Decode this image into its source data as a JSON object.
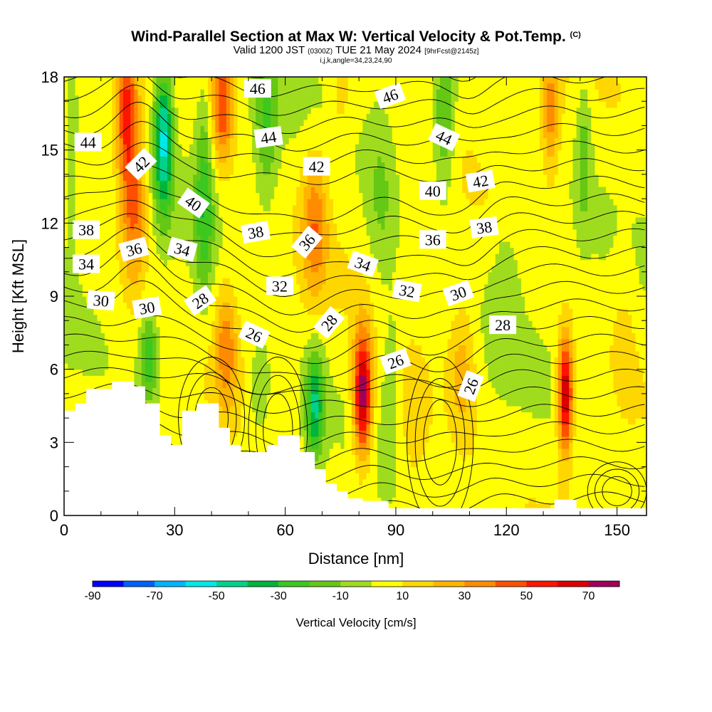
{
  "header": {
    "title": "Wind-Parallel Section at Max W: Vertical Velocity & Pot.Temp.",
    "copyright": "(C)",
    "valid_prefix": "Valid 1200 JST",
    "valid_utc": "(0300Z)",
    "valid_date": "TUE 21 May 2024",
    "forecast": "[9hrFcst@2145z]",
    "indices": "i,j,k,angle=34,23,24,90"
  },
  "colors": {
    "-90": "#0000ff",
    "-80": "#0060ff",
    "-70": "#00b4ff",
    "-60": "#00e8e8",
    "-50": "#00d28c",
    "-40": "#00b43c",
    "-30": "#3cc81e",
    "-20": "#64c814",
    "-10": "#a0dc1e",
    "0": "#ffff00",
    "10": "#ffd700",
    "20": "#ffb400",
    "30": "#ff8c00",
    "40": "#ff5000",
    "50": "#ff1400",
    "60": "#dc0000",
    "70": "#a0005a",
    "80": "#64008c"
  },
  "chart_data": {
    "type": "heatmap",
    "xlabel": "Distance [nm]",
    "ylabel": "Height [Kft MSL]",
    "xlim": [
      0,
      158
    ],
    "ylim": [
      0,
      18
    ],
    "x_ticks": [
      0,
      30,
      60,
      90,
      120,
      150
    ],
    "y_ticks": [
      0,
      3,
      6,
      9,
      12,
      15,
      18
    ],
    "colorbar": {
      "title": "Vertical Velocity [cm/s]",
      "levels": [
        -90,
        -80,
        -70,
        -60,
        -50,
        -40,
        -30,
        -20,
        -10,
        0,
        10,
        20,
        30,
        40,
        50,
        60,
        70,
        80
      ],
      "tick_labels": [
        "-90",
        "-70",
        "-50",
        "-30",
        "-10",
        "10",
        "30",
        "50",
        "70"
      ]
    },
    "vertical_velocity_features": [
      {
        "x": 81,
        "z": 5.0,
        "w": 75,
        "wx": 2.5,
        "wz": 2.6
      },
      {
        "x": 136,
        "z": 5.0,
        "w": 70,
        "wx": 2.0,
        "wz": 2.4
      },
      {
        "x": 17,
        "z": 16.5,
        "w": 50,
        "wx": 3.0,
        "wz": 3.0
      },
      {
        "x": 19,
        "z": 12.5,
        "w": 38,
        "wx": 3.5,
        "wz": 3.0
      },
      {
        "x": 43,
        "z": 17.0,
        "w": 45,
        "wx": 3.0,
        "wz": 2.5
      },
      {
        "x": 68,
        "z": 12.0,
        "w": 32,
        "wx": 3.5,
        "wz": 3.0
      },
      {
        "x": 44,
        "z": 7.0,
        "w": 30,
        "wx": 3.0,
        "wz": 2.5
      },
      {
        "x": 108,
        "z": 6.0,
        "w": 22,
        "wx": 4.0,
        "wz": 3.0
      },
      {
        "x": 132,
        "z": 16.5,
        "w": 30,
        "wx": 2.5,
        "wz": 2.5
      },
      {
        "x": 95,
        "z": 3.5,
        "w": 15,
        "wx": 5.0,
        "wz": 3.0
      },
      {
        "x": 27,
        "z": 15.5,
        "w": -55,
        "wx": 2.5,
        "wz": 3.0
      },
      {
        "x": 68,
        "z": 4.5,
        "w": -45,
        "wx": 2.5,
        "wz": 2.2
      },
      {
        "x": 38,
        "z": 13.0,
        "w": -30,
        "wx": 2.5,
        "wz": 4.0
      },
      {
        "x": 23,
        "z": 6.5,
        "w": -32,
        "wx": 2.5,
        "wz": 2.0
      },
      {
        "x": 55,
        "z": 16.0,
        "w": -25,
        "wx": 3.0,
        "wz": 3.0
      },
      {
        "x": 103,
        "z": 16.0,
        "w": -25,
        "wx": 3.0,
        "wz": 3.0
      },
      {
        "x": 86,
        "z": 13.0,
        "w": -15,
        "wx": 4.0,
        "wz": 4.0
      },
      {
        "x": 141,
        "z": 15.0,
        "w": -20,
        "wx": 2.0,
        "wz": 3.0
      },
      {
        "x": 53,
        "z": 5.0,
        "w": -15,
        "wx": 3.0,
        "wz": 2.0
      },
      {
        "x": 89,
        "z": 6.0,
        "w": -12,
        "wx": 2.5,
        "wz": 3.0
      },
      {
        "x": 120,
        "z": 10.0,
        "w": -10,
        "wx": 4.0,
        "wz": 3.0
      },
      {
        "x": 2,
        "z": 14.0,
        "w": -10,
        "wx": 2.0,
        "wz": 4.0
      },
      {
        "x": 75,
        "z": 17.0,
        "w": 12,
        "wx": 3.0,
        "wz": 2.0
      },
      {
        "x": 152,
        "z": 8.0,
        "w": 8,
        "wx": 4.0,
        "wz": 4.0
      }
    ],
    "terrain": [
      [
        0,
        4.3
      ],
      [
        3,
        4.3
      ],
      [
        3,
        4.6
      ],
      [
        6,
        4.6
      ],
      [
        6,
        5.2
      ],
      [
        13,
        5.2
      ],
      [
        13,
        5.5
      ],
      [
        19,
        5.5
      ],
      [
        19,
        5.3
      ],
      [
        22,
        5.3
      ],
      [
        22,
        4.6
      ],
      [
        26,
        4.6
      ],
      [
        26,
        3.3
      ],
      [
        29,
        3.3
      ],
      [
        29,
        2.9
      ],
      [
        32,
        2.9
      ],
      [
        32,
        4.3
      ],
      [
        36,
        4.3
      ],
      [
        36,
        4.6
      ],
      [
        42,
        4.6
      ],
      [
        42,
        3.6
      ],
      [
        45,
        3.6
      ],
      [
        45,
        2.9
      ],
      [
        48,
        2.9
      ],
      [
        48,
        2.6
      ],
      [
        55,
        2.6
      ],
      [
        55,
        2.9
      ],
      [
        58,
        2.9
      ],
      [
        58,
        3.3
      ],
      [
        64,
        3.3
      ],
      [
        64,
        2.6
      ],
      [
        68,
        2.6
      ],
      [
        68,
        1.9
      ],
      [
        71,
        1.9
      ],
      [
        71,
        1.3
      ],
      [
        74,
        1.3
      ],
      [
        74,
        1.0
      ],
      [
        77,
        1.0
      ],
      [
        77,
        0.7
      ],
      [
        81,
        0.7
      ],
      [
        81,
        0.6
      ],
      [
        88,
        0.6
      ],
      [
        88,
        0.3
      ],
      [
        133,
        0.3
      ],
      [
        133,
        0.65
      ],
      [
        139,
        0.65
      ],
      [
        139,
        0.3
      ],
      [
        158,
        0.3
      ]
    ],
    "theta_contours": {
      "label_values": [
        26,
        28,
        30,
        32,
        34,
        36,
        38,
        40,
        42,
        44,
        46
      ],
      "labels": [
        {
          "text": "46",
          "x": 52.5,
          "z": 17.5,
          "angle": 0
        },
        {
          "text": "46",
          "x": 88.5,
          "z": 17.2,
          "angle": -20
        },
        {
          "text": "44",
          "x": 6.5,
          "z": 15.3,
          "angle": 0
        },
        {
          "text": "44",
          "x": 55.5,
          "z": 15.5,
          "angle": -8
        },
        {
          "text": "44",
          "x": 103,
          "z": 15.5,
          "angle": 25
        },
        {
          "text": "42",
          "x": 21,
          "z": 14.4,
          "angle": -45
        },
        {
          "text": "42",
          "x": 68.5,
          "z": 14.3,
          "angle": 0
        },
        {
          "text": "42",
          "x": 113,
          "z": 13.7,
          "angle": -10
        },
        {
          "text": "40",
          "x": 35,
          "z": 12.8,
          "angle": 35
        },
        {
          "text": "40",
          "x": 100,
          "z": 13.3,
          "angle": 0
        },
        {
          "text": "38",
          "x": 6,
          "z": 11.7,
          "angle": 0
        },
        {
          "text": "38",
          "x": 52,
          "z": 11.6,
          "angle": -10
        },
        {
          "text": "38",
          "x": 114,
          "z": 11.8,
          "angle": -8
        },
        {
          "text": "36",
          "x": 19,
          "z": 10.9,
          "angle": -15
        },
        {
          "text": "36",
          "x": 66,
          "z": 11.2,
          "angle": -50
        },
        {
          "text": "36",
          "x": 100,
          "z": 11.3,
          "angle": 0
        },
        {
          "text": "34",
          "x": 6,
          "z": 10.3,
          "angle": 0
        },
        {
          "text": "34",
          "x": 32,
          "z": 10.9,
          "angle": 15
        },
        {
          "text": "34",
          "x": 81,
          "z": 10.3,
          "angle": 20
        },
        {
          "text": "32",
          "x": 58.5,
          "z": 9.4,
          "angle": 0
        },
        {
          "text": "32",
          "x": 93,
          "z": 9.2,
          "angle": 10
        },
        {
          "text": "30",
          "x": 10,
          "z": 8.8,
          "angle": 5
        },
        {
          "text": "30",
          "x": 22.5,
          "z": 8.5,
          "angle": -10
        },
        {
          "text": "30",
          "x": 107,
          "z": 9.1,
          "angle": -20
        },
        {
          "text": "28",
          "x": 37,
          "z": 8.8,
          "angle": -35
        },
        {
          "text": "28",
          "x": 72,
          "z": 7.9,
          "angle": -50
        },
        {
          "text": "28",
          "x": 119,
          "z": 7.8,
          "angle": 0
        },
        {
          "text": "26",
          "x": 51.5,
          "z": 7.4,
          "angle": 25
        },
        {
          "text": "26",
          "x": 90,
          "z": 6.3,
          "angle": -20
        },
        {
          "text": "26",
          "x": 110.5,
          "z": 5.3,
          "angle": -70
        }
      ]
    }
  }
}
